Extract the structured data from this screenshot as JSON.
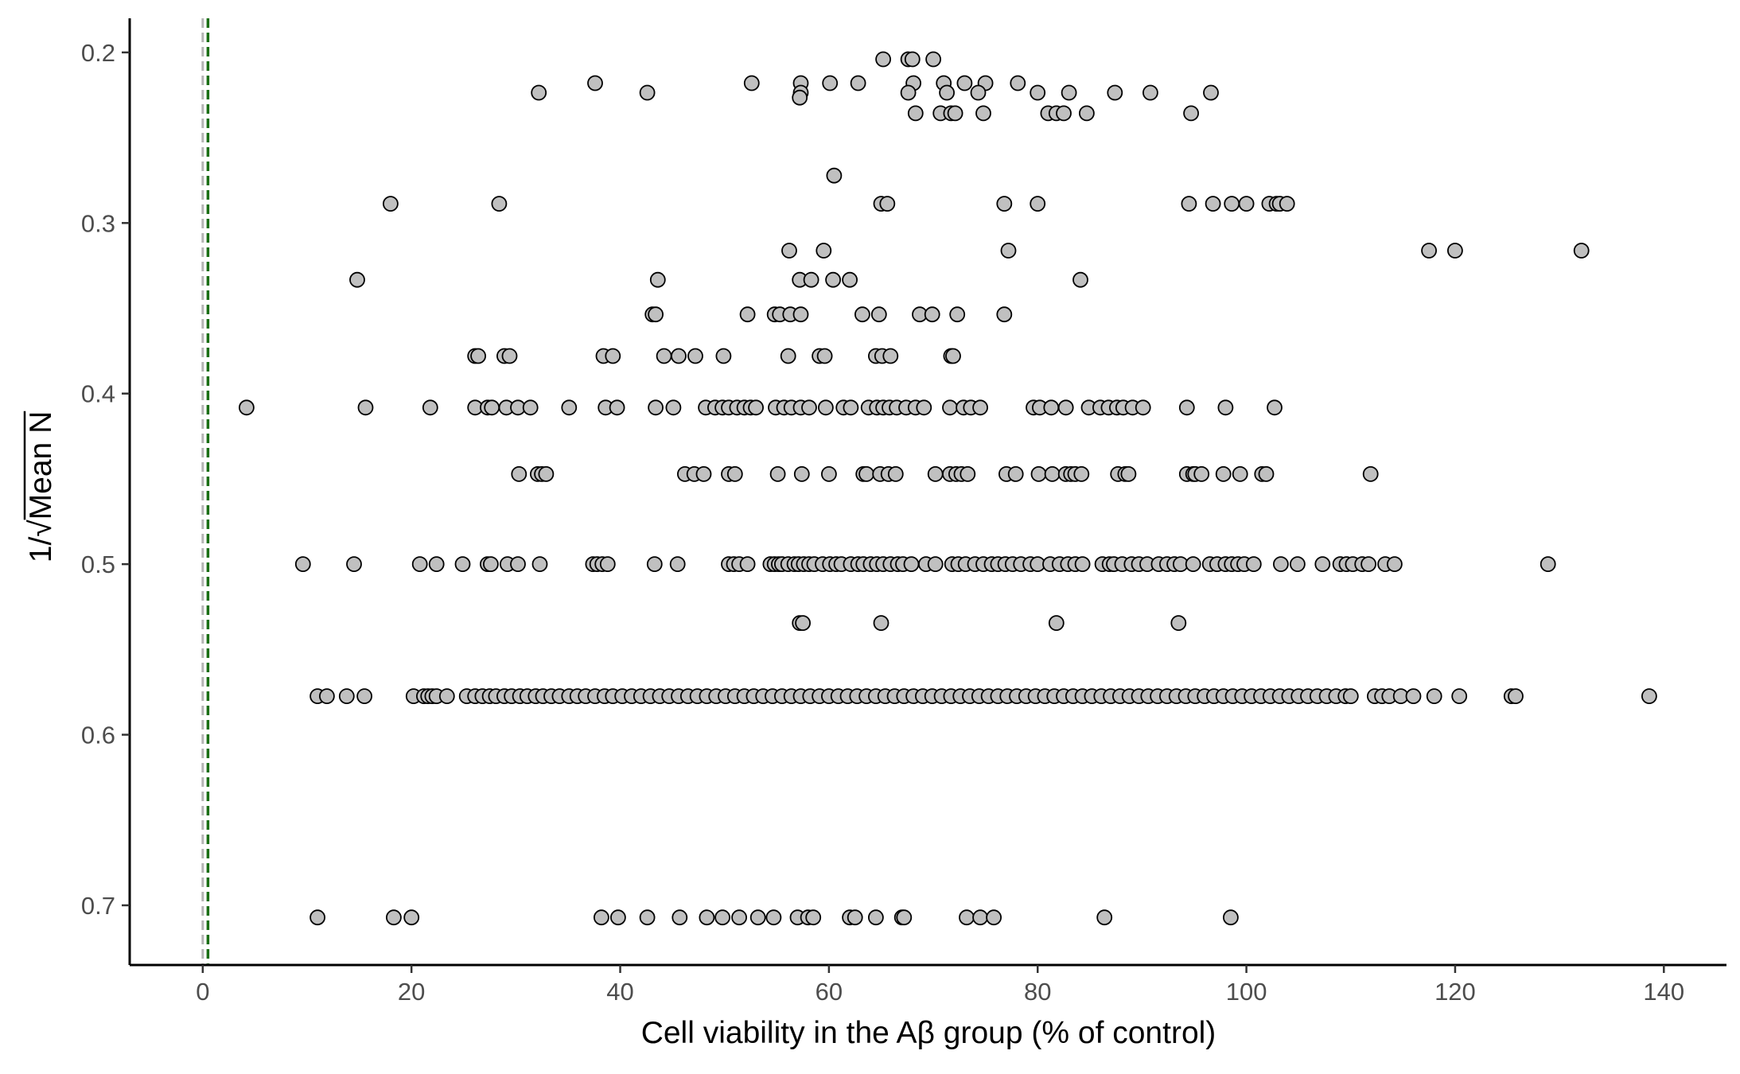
{
  "chart_data": {
    "type": "scatter",
    "xlabel": "Cell viability in the Aβ group (% of control)",
    "ylabel": "1/√Mean N",
    "ylabel_parts": {
      "prefix": "1/√",
      "radicand": "Mean N"
    },
    "xlim": [
      -7,
      146
    ],
    "ylim": [
      0.18,
      0.735
    ],
    "y_reversed": true,
    "x_ticks": [
      0,
      20,
      40,
      60,
      80,
      100,
      120,
      140
    ],
    "x_tick_labels": [
      "0",
      "20",
      "40",
      "60",
      "80",
      "100",
      "120",
      "140"
    ],
    "y_ticks": [
      0.2,
      0.3,
      0.4,
      0.5,
      0.6,
      0.7
    ],
    "y_tick_labels": [
      "0.2",
      "0.3",
      "0.4",
      "0.5",
      "0.6",
      "0.7"
    ],
    "grid": false,
    "reference_lines": [
      {
        "x": 0,
        "color": "#b4b4b4",
        "style": "dashed"
      },
      {
        "x": 0.5,
        "color": "#1a6e14",
        "style": "dashed"
      }
    ],
    "marker_fill": "#c0c0c0",
    "marker_edge": "#000000",
    "rows": [
      {
        "y": 0.204,
        "x": [
          65.2,
          67.6,
          68.0,
          70.0
        ]
      },
      {
        "y": 0.218,
        "x": [
          37.6,
          52.6,
          57.3,
          60.1,
          62.8,
          68.1,
          71.0,
          73.0,
          75.0,
          78.1
        ]
      },
      {
        "y": 0.2236,
        "x": [
          32.2,
          42.6,
          57.3,
          67.6,
          71.3,
          74.3,
          80.0,
          83.0,
          87.4,
          90.8,
          96.6
        ]
      },
      {
        "y": 0.2265,
        "x": [
          57.2
        ]
      },
      {
        "y": 0.2357,
        "x": [
          68.3,
          70.7,
          71.7,
          72.1,
          74.8,
          81.0,
          81.8,
          82.5,
          84.7,
          94.7
        ]
      },
      {
        "y": 0.2722,
        "x": [
          60.5
        ]
      },
      {
        "y": 0.2887,
        "x": [
          18.0,
          28.4,
          65.0,
          65.6,
          76.8,
          80.0,
          94.5,
          96.8,
          98.6,
          100.0,
          102.2,
          102.9,
          103.2,
          103.9
        ]
      },
      {
        "y": 0.3162,
        "x": [
          56.2,
          59.5,
          77.2,
          117.5,
          120.0,
          132.1
        ]
      },
      {
        "y": 0.3333,
        "x": [
          14.8,
          43.6,
          57.2,
          58.3,
          60.4,
          62.0,
          84.1
        ]
      },
      {
        "y": 0.3536,
        "x": [
          43.1,
          43.4,
          52.2,
          54.8,
          55.3,
          56.3,
          57.3,
          63.2,
          64.8,
          68.7,
          69.9,
          72.3,
          76.8
        ]
      },
      {
        "y": 0.378,
        "x": [
          26.1,
          26.4,
          28.9,
          29.4,
          38.4,
          39.3,
          44.2,
          45.6,
          47.2,
          49.9,
          56.1,
          59.1,
          59.6,
          64.5,
          65.1,
          65.9,
          71.7,
          71.9
        ]
      },
      {
        "y": 0.4082,
        "x": [
          4.2,
          15.6,
          21.8,
          26.1,
          27.3,
          27.7,
          29.1,
          30.2,
          31.4,
          35.1,
          38.6,
          39.7,
          43.4,
          45.1,
          48.2,
          49.1,
          49.8,
          50.4,
          51.2,
          51.9,
          52.5,
          53.0,
          54.9,
          55.7,
          56.4,
          57.3,
          58.1,
          59.7,
          61.4,
          62.1,
          63.8,
          64.6,
          65.2,
          65.8,
          66.5,
          67.4,
          68.3,
          69.1,
          71.6,
          72.9,
          73.6,
          74.5,
          79.6,
          80.2,
          81.3,
          82.7,
          84.9,
          86.0,
          86.8,
          87.6,
          88.2,
          89.1,
          90.1,
          94.3,
          98.0,
          102.7
        ]
      },
      {
        "y": 0.4472,
        "x": [
          30.3,
          32.1,
          32.5,
          32.9,
          46.2,
          47.1,
          48.0,
          50.4,
          51.0,
          55.1,
          57.4,
          60.0,
          63.3,
          63.6,
          64.9,
          65.7,
          66.4,
          70.2,
          71.6,
          72.2,
          72.7,
          73.3,
          77.0,
          77.9,
          80.1,
          81.4,
          82.7,
          83.2,
          83.6,
          84.2,
          87.7,
          88.4,
          88.7,
          94.3,
          94.9,
          95.1,
          95.7,
          97.8,
          99.4,
          101.5,
          101.9,
          111.9
        ]
      },
      {
        "y": 0.5,
        "x": [
          9.6,
          14.5,
          20.8,
          22.4,
          24.9,
          27.3,
          27.6,
          29.2,
          30.2,
          32.3,
          37.4,
          37.8,
          38.3,
          38.8,
          43.3,
          45.5,
          50.4,
          50.9,
          51.4,
          52.2,
          54.4,
          54.8,
          55.2,
          55.5,
          56.1,
          56.7,
          57.1,
          57.6,
          58.1,
          58.6,
          59.4,
          60.1,
          60.7,
          61.2,
          62.1,
          62.8,
          63.3,
          64.0,
          64.6,
          65.2,
          65.9,
          66.6,
          67.1,
          67.9,
          69.3,
          70.2,
          71.8,
          72.4,
          73.1,
          74.0,
          74.8,
          75.6,
          76.2,
          76.9,
          77.6,
          78.4,
          79.3,
          80.0,
          81.2,
          82.1,
          82.9,
          83.6,
          84.3,
          86.2,
          86.9,
          87.3,
          88.1,
          89.0,
          89.7,
          90.5,
          91.6,
          92.4,
          93.1,
          93.7,
          94.9,
          96.5,
          97.2,
          98.0,
          98.6,
          99.2,
          99.8,
          100.7,
          103.3,
          104.9,
          107.3,
          109.0,
          109.6,
          110.2,
          111.1,
          111.7,
          113.3,
          114.2,
          128.9
        ]
      },
      {
        "y": 0.5345,
        "x": [
          57.2,
          57.5,
          65.0,
          81.8,
          93.5
        ]
      },
      {
        "y": 0.5774,
        "x": [
          11.0,
          11.9,
          13.8,
          15.5,
          20.2,
          21.2,
          21.6,
          22.0,
          22.4,
          23.4,
          25.3,
          26.1,
          26.8,
          27.5,
          28.1,
          28.9,
          29.6,
          30.4,
          31.1,
          31.9,
          32.6,
          33.4,
          34.2,
          35.1,
          35.9,
          36.7,
          37.6,
          38.5,
          39.3,
          40.2,
          41.1,
          42.0,
          42.9,
          43.8,
          44.7,
          45.6,
          46.5,
          47.4,
          48.3,
          49.2,
          50.1,
          51.0,
          51.9,
          52.8,
          53.7,
          54.6,
          55.5,
          56.4,
          57.3,
          58.2,
          59.1,
          60.0,
          60.9,
          61.8,
          62.7,
          63.6,
          64.5,
          65.4,
          66.3,
          67.2,
          68.1,
          69.0,
          69.9,
          70.8,
          71.7,
          72.6,
          73.5,
          74.4,
          75.3,
          76.2,
          77.1,
          78.0,
          78.9,
          79.8,
          80.7,
          81.6,
          82.5,
          83.4,
          84.3,
          85.2,
          86.1,
          87.0,
          87.9,
          88.8,
          89.7,
          90.6,
          91.5,
          92.4,
          93.3,
          94.2,
          95.1,
          96.0,
          96.9,
          97.8,
          98.7,
          99.6,
          100.5,
          101.4,
          102.3,
          103.2,
          104.1,
          105.0,
          105.9,
          106.8,
          107.7,
          108.6,
          109.5,
          110.0,
          112.3,
          113.0,
          113.7,
          114.8,
          116.0,
          118.0,
          120.4,
          125.4,
          125.8,
          138.6
        ]
      },
      {
        "y": 0.7071,
        "x": [
          11.0,
          18.3,
          20.0,
          38.2,
          39.8,
          42.6,
          45.7,
          48.3,
          49.8,
          51.4,
          53.2,
          54.7,
          57.0,
          58.0,
          58.5,
          62.0,
          62.5,
          64.5,
          67.0,
          67.2,
          73.2,
          74.5,
          75.8,
          86.4,
          98.5
        ]
      }
    ]
  }
}
